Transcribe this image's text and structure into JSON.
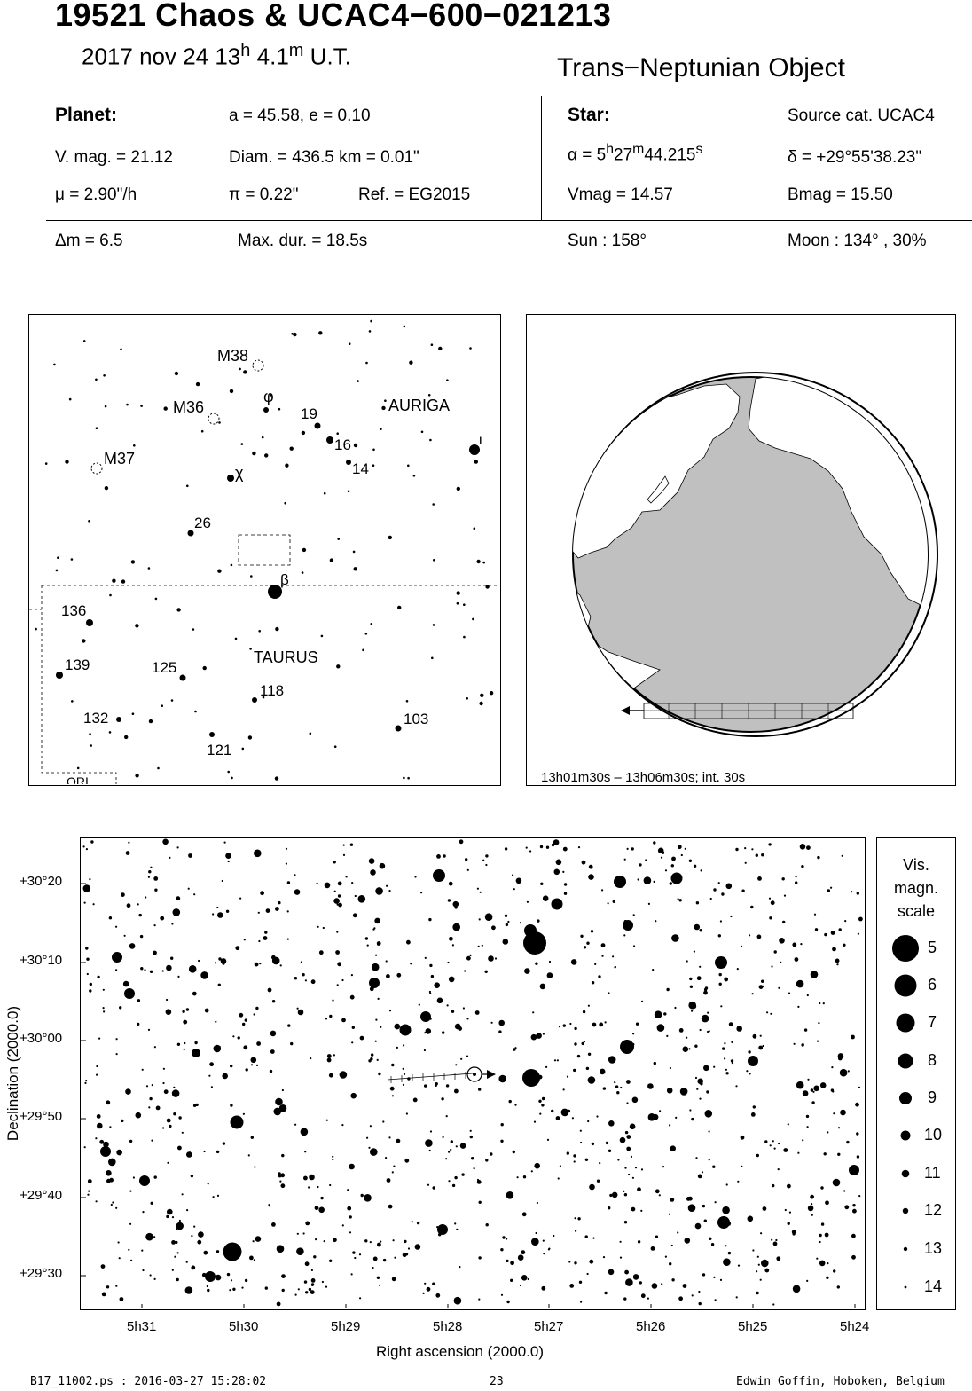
{
  "header": {
    "title": "19521 Chaos  &  UCAC4−600−021213",
    "date": "2017 nov 24  13",
    "hour_unit": "h",
    "minute_value": " 4.1",
    "minute_unit": "m",
    "time_suffix": " U.T.",
    "object_type": "Trans−Neptunian Object"
  },
  "planet": {
    "heading": "Planet:",
    "orbit": "a = 45.58, e = 0.10",
    "vmag": "V. mag. = 21.12",
    "diam": "Diam. = 436.5 km = 0.01\"",
    "mu": "μ =  2.90\"/h",
    "pi": "π =  0.22\"",
    "ref": "Ref. = EG2015"
  },
  "star": {
    "heading": "Star:",
    "source": "Source cat.  UCAC4",
    "alpha_prefix": "α =  5",
    "alpha_h": "h",
    "alpha_m_val": "27",
    "alpha_m": "m",
    "alpha_s_val": "44.215",
    "alpha_s": "s",
    "delta": "δ = +29°55'38.23\"",
    "vmag": "Vmag = 14.57",
    "bmag": "Bmag = 15.50"
  },
  "event": {
    "dm": "Δm = 6.5",
    "maxdur": "Max. dur. = 18.5s",
    "sun": "Sun : 158°",
    "moon": "Moon : 134° , 30%"
  },
  "finder": {
    "labels": [
      "M38",
      "M36",
      "M37",
      "φ",
      "19",
      "16",
      "14",
      "χ",
      "26",
      "β",
      "ι",
      "AURIGA",
      "TAURUS",
      "136",
      "139",
      "125",
      "118",
      "132",
      "121",
      "103",
      "ORI"
    ]
  },
  "globe": {
    "caption": "13h01m30s – 13h06m30s; int. 30s"
  },
  "chart_data": {
    "type": "scatter",
    "xlabel": "Right ascension (2000.0)",
    "ylabel": "Declination (2000.0)",
    "x_ticks": [
      "5h31",
      "5h30",
      "5h29",
      "5h28",
      "5h27",
      "5h26",
      "5h25",
      "5h24"
    ],
    "y_ticks": [
      "+30°20",
      "+30°10",
      "+30°00",
      "+29°50",
      "+29°40",
      "+29°30"
    ],
    "legend": {
      "title_lines": [
        "Vis.",
        "magn.",
        "scale"
      ],
      "magnitudes": [
        "5",
        "6",
        "7",
        "8",
        "9",
        "10",
        "11",
        "12",
        "13",
        "14"
      ]
    },
    "bright_stars": [
      {
        "ra": "5h27m14s",
        "dec": "+30°12'",
        "mag": 5
      },
      {
        "ra": "5h27m13s",
        "dec": "+29°54'",
        "mag": 7
      },
      {
        "ra": "5h29m55s",
        "dec": "+29°33'",
        "mag": 6
      }
    ]
  },
  "footer": {
    "left": "B17_11002.ps : 2016-03-27 15:28:02",
    "center": "23",
    "right": "Edwin Goffin, Hoboken, Belgium"
  }
}
